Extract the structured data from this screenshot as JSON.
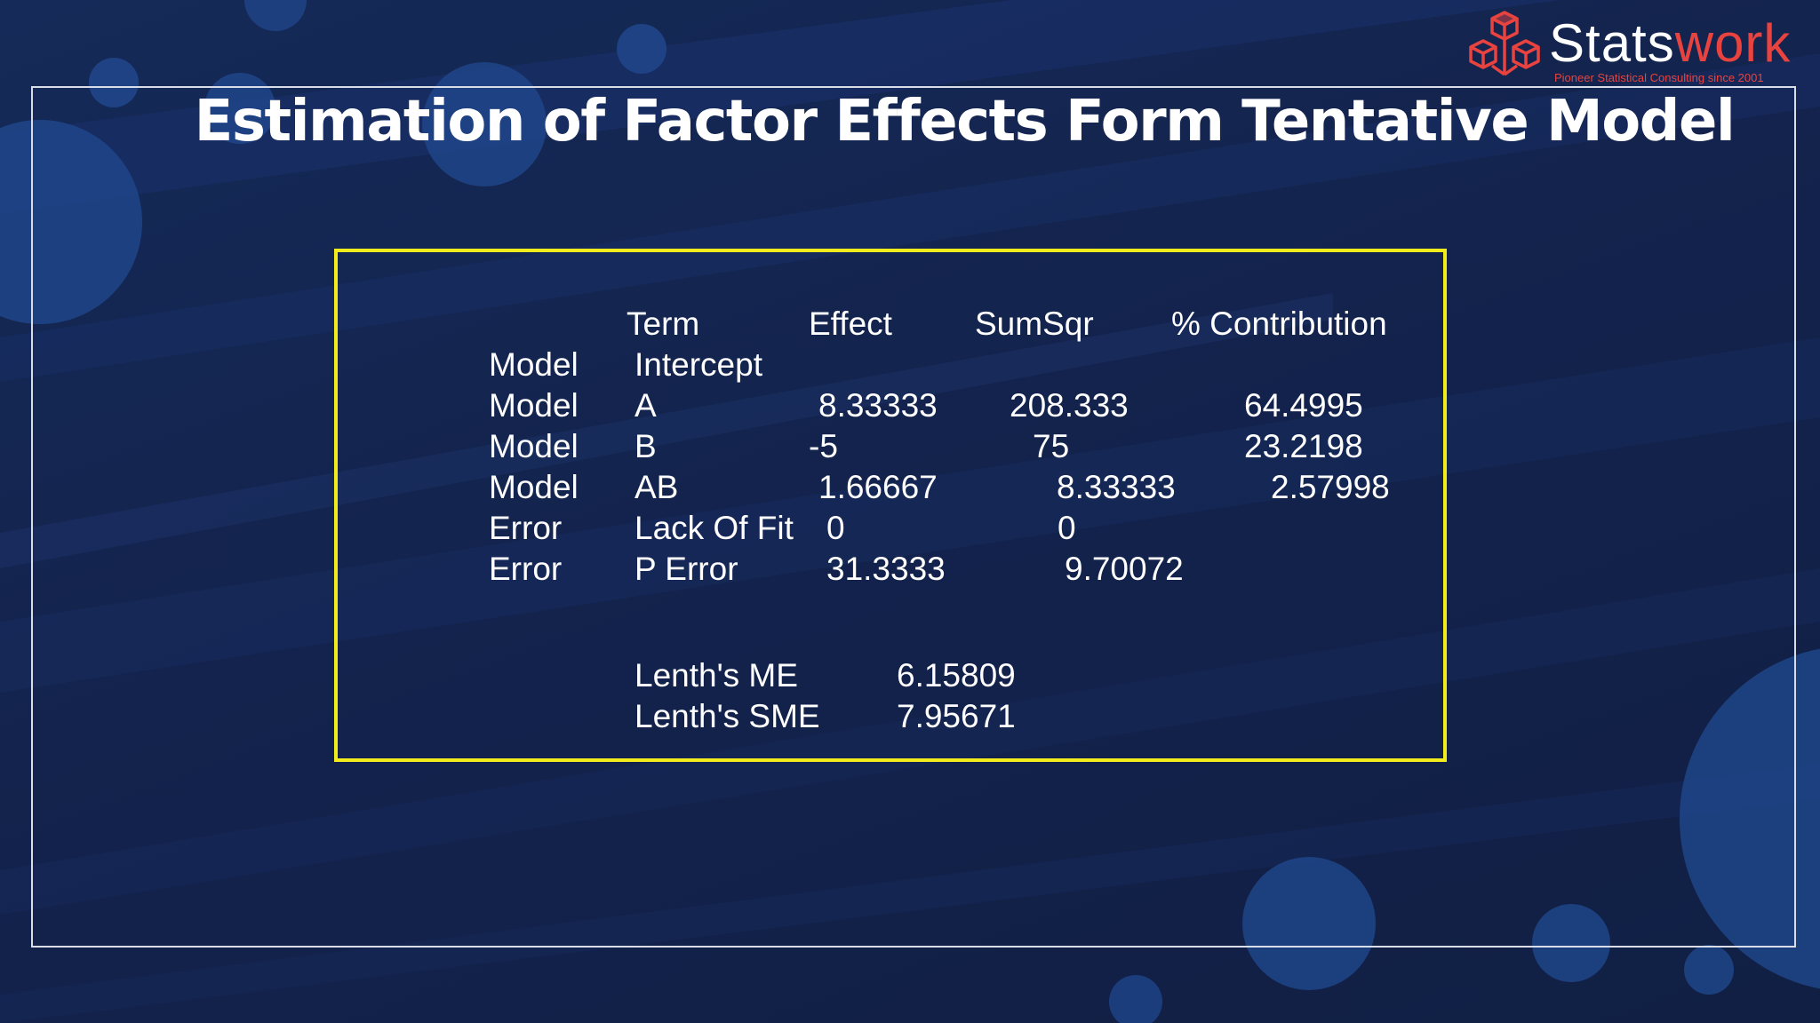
{
  "slide": {
    "title": "Estimation of Factor Effects Form Tentative Model"
  },
  "logo": {
    "name_part1": "Stats",
    "name_part2": "work",
    "tagline": "Pioneer Statistical Consulting since 2001",
    "brand_color": "#e8433f"
  },
  "table": {
    "headers": {
      "term": "Term",
      "effect": "Effect",
      "sumsqr": "SumSqr",
      "contribution": "% Contribution"
    },
    "rows": [
      {
        "source": "Model",
        "term": "Intercept",
        "effect": "",
        "sumsqr": "",
        "contribution": ""
      },
      {
        "source": "Model",
        "term": "A",
        "effect": "8.33333",
        "sumsqr": "208.333",
        "contribution": "64.4995"
      },
      {
        "source": "Model",
        "term": "B",
        "effect": "-5",
        "sumsqr": "75",
        "contribution": "23.2198"
      },
      {
        "source": "Model",
        "term": "AB",
        "effect": "1.66667",
        "sumsqr": "8.33333",
        "contribution": "2.57998"
      },
      {
        "source": "Error",
        "term": "Lack Of Fit",
        "effect": "0",
        "sumsqr": "0",
        "contribution": ""
      },
      {
        "source": "Error",
        "term": "P Error",
        "effect": "31.3333",
        "sumsqr": "9.70072",
        "contribution": ""
      }
    ],
    "lenth": [
      {
        "label": "Lenth's ME",
        "value": "6.15809"
      },
      {
        "label": "Lenth's SME",
        "value": "7.95671"
      }
    ],
    "border_color": "#f2ec1c"
  }
}
